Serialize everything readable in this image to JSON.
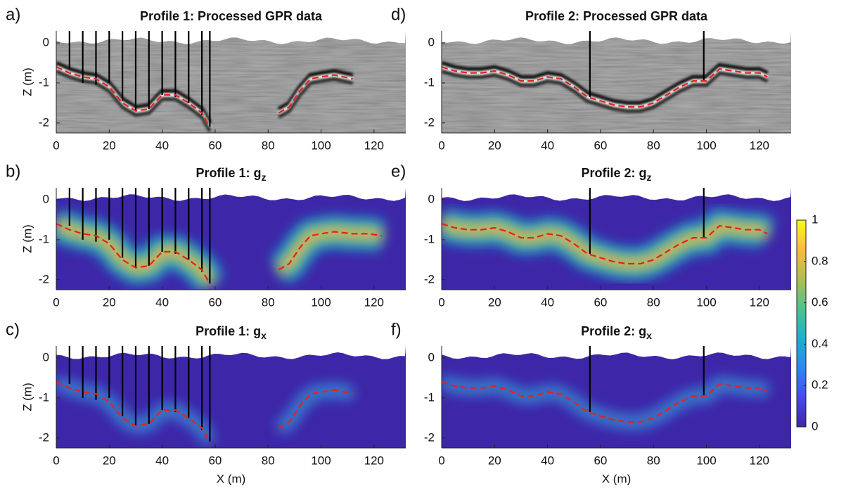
{
  "chart_data": [
    {
      "type": "gpr",
      "label": "a)",
      "title": "Profile 1: Processed GPR data",
      "ylabel": "Z (m)",
      "xlim": [
        0,
        132
      ],
      "ylim": [
        -2.25,
        0.3
      ],
      "xticks": [
        0,
        20,
        40,
        60,
        80,
        100,
        120
      ],
      "yticks": [
        0,
        -1,
        -2
      ],
      "interface_x": [
        0,
        5,
        10,
        15,
        20,
        25,
        30,
        35,
        40,
        45,
        50,
        55,
        58,
        null,
        84,
        88,
        92,
        96,
        100,
        105,
        112
      ],
      "interface_y": [
        -0.6,
        -0.75,
        -0.85,
        -0.9,
        -1.1,
        -1.5,
        -1.7,
        -1.65,
        -1.3,
        -1.3,
        -1.5,
        -1.75,
        -2.1,
        null,
        -1.75,
        -1.6,
        -1.2,
        -0.9,
        -0.85,
        -0.8,
        -0.9
      ],
      "interface_color": "#e8201c",
      "borehole_x": [
        5,
        10,
        15,
        20,
        25,
        30,
        35,
        40,
        45,
        50,
        55,
        58
      ],
      "borehole_bottom": [
        -0.65,
        -1.0,
        -1.05,
        -1.0,
        -1.45,
        -1.7,
        -1.65,
        -1.3,
        -1.35,
        -1.5,
        -1.8,
        -2.1
      ]
    },
    {
      "type": "gpr",
      "label": "d)",
      "title": "Profile 2: Processed GPR data",
      "xlim": [
        0,
        132
      ],
      "ylim": [
        -2.25,
        0.3
      ],
      "xticks": [
        0,
        20,
        40,
        60,
        80,
        100,
        120
      ],
      "yticks": [
        0,
        -1,
        -2
      ],
      "interface_x": [
        0,
        5,
        10,
        15,
        20,
        25,
        30,
        35,
        40,
        45,
        50,
        55,
        60,
        65,
        70,
        75,
        80,
        85,
        90,
        95,
        100,
        105,
        110,
        115,
        120,
        123
      ],
      "interface_y": [
        -0.6,
        -0.7,
        -0.75,
        -0.75,
        -0.7,
        -0.8,
        -0.95,
        -0.95,
        -0.85,
        -0.9,
        -1.1,
        -1.35,
        -1.45,
        -1.55,
        -1.6,
        -1.6,
        -1.5,
        -1.3,
        -1.1,
        -0.95,
        -0.95,
        -0.65,
        -0.7,
        -0.75,
        -0.75,
        -0.85
      ],
      "interface_color": "#e8201c",
      "borehole_x": [
        56,
        99
      ],
      "borehole_bottom": [
        -1.35,
        -0.95
      ]
    },
    {
      "type": "gz",
      "label": "b)",
      "title": "Profile 1: g",
      "title_sub": "z",
      "ylabel": "Z (m)",
      "xlim": [
        0,
        132
      ],
      "ylim": [
        -2.25,
        0.3
      ],
      "xticks": [
        0,
        20,
        40,
        60,
        80,
        100,
        120
      ],
      "yticks": [
        0,
        -1,
        -2
      ],
      "interface_x": [
        0,
        5,
        10,
        15,
        20,
        25,
        30,
        35,
        40,
        45,
        50,
        55,
        58,
        null,
        84,
        88,
        92,
        96,
        100,
        105,
        112,
        118,
        123
      ],
      "interface_y": [
        -0.6,
        -0.75,
        -0.85,
        -0.9,
        -1.1,
        -1.5,
        -1.7,
        -1.65,
        -1.3,
        -1.3,
        -1.5,
        -1.75,
        -2.1,
        null,
        -1.75,
        -1.6,
        -1.2,
        -0.9,
        -0.85,
        -0.8,
        -0.85,
        -0.85,
        -0.9
      ],
      "interface_color": "#e8201c",
      "borehole_x": [
        5,
        10,
        15,
        20,
        25,
        30,
        35,
        40,
        45,
        50,
        55,
        58
      ],
      "borehole_bottom": [
        -0.65,
        -1.0,
        -1.05,
        -1.0,
        -1.45,
        -1.7,
        -1.65,
        -1.3,
        -1.35,
        -1.5,
        -1.8,
        -2.1
      ]
    },
    {
      "type": "gz",
      "label": "e)",
      "title": "Profile 2: g",
      "title_sub": "z",
      "xlim": [
        0,
        132
      ],
      "ylim": [
        -2.25,
        0.3
      ],
      "xticks": [
        0,
        20,
        40,
        60,
        80,
        100,
        120
      ],
      "yticks": [
        0,
        -1,
        -2
      ],
      "interface_x": [
        0,
        5,
        10,
        15,
        20,
        25,
        30,
        35,
        40,
        45,
        50,
        55,
        60,
        65,
        70,
        75,
        80,
        85,
        90,
        95,
        100,
        105,
        110,
        115,
        120,
        123
      ],
      "interface_y": [
        -0.6,
        -0.7,
        -0.75,
        -0.75,
        -0.7,
        -0.8,
        -0.95,
        -0.95,
        -0.85,
        -0.9,
        -1.1,
        -1.35,
        -1.45,
        -1.55,
        -1.6,
        -1.6,
        -1.5,
        -1.3,
        -1.1,
        -0.95,
        -0.95,
        -0.65,
        -0.7,
        -0.75,
        -0.75,
        -0.85
      ],
      "interface_color": "#e8201c",
      "borehole_x": [
        56,
        99
      ],
      "borehole_bottom": [
        -1.35,
        -0.95
      ]
    },
    {
      "type": "gx",
      "label": "c)",
      "title": "Profile 1: g",
      "title_sub": "x",
      "ylabel": "Z (m)",
      "xlabel": "X (m)",
      "xlim": [
        0,
        132
      ],
      "ylim": [
        -2.25,
        0.3
      ],
      "xticks": [
        0,
        20,
        40,
        60,
        80,
        100,
        120
      ],
      "yticks": [
        0,
        -1,
        -2
      ],
      "interface_x": [
        0,
        5,
        10,
        15,
        20,
        25,
        30,
        35,
        40,
        45,
        50,
        55,
        58,
        null,
        84,
        88,
        92,
        96,
        100,
        105,
        112
      ],
      "interface_y": [
        -0.6,
        -0.75,
        -0.85,
        -0.9,
        -1.1,
        -1.5,
        -1.7,
        -1.65,
        -1.3,
        -1.3,
        -1.5,
        -1.75,
        -2.1,
        null,
        -1.75,
        -1.6,
        -1.2,
        -0.9,
        -0.85,
        -0.8,
        -0.9
      ],
      "interface_color": "#e8201c",
      "borehole_x": [
        5,
        10,
        15,
        20,
        25,
        30,
        35,
        40,
        45,
        50,
        55,
        58
      ],
      "borehole_bottom": [
        -0.65,
        -1.0,
        -1.05,
        -1.0,
        -1.45,
        -1.7,
        -1.65,
        -1.3,
        -1.35,
        -1.5,
        -1.8,
        -2.1
      ]
    },
    {
      "type": "gx",
      "label": "f)",
      "title": "Profile 2: g",
      "title_sub": "x",
      "xlabel": "X (m)",
      "xlim": [
        0,
        132
      ],
      "ylim": [
        -2.25,
        0.3
      ],
      "xticks": [
        0,
        20,
        40,
        60,
        80,
        100,
        120
      ],
      "yticks": [
        0,
        -1,
        -2
      ],
      "interface_x": [
        0,
        5,
        10,
        15,
        20,
        25,
        30,
        35,
        40,
        45,
        50,
        55,
        60,
        65,
        70,
        75,
        80,
        85,
        90,
        95,
        100,
        105,
        110,
        115,
        120,
        123
      ],
      "interface_y": [
        -0.6,
        -0.7,
        -0.75,
        -0.75,
        -0.7,
        -0.8,
        -0.95,
        -0.95,
        -0.85,
        -0.9,
        -1.1,
        -1.35,
        -1.45,
        -1.55,
        -1.6,
        -1.6,
        -1.5,
        -1.3,
        -1.1,
        -0.95,
        -0.95,
        -0.65,
        -0.7,
        -0.75,
        -0.75,
        -0.85
      ],
      "interface_color": "#e8201c",
      "borehole_x": [
        56,
        99
      ],
      "borehole_bottom": [
        -1.35,
        -0.95
      ]
    },
    {
      "type": "colorbar",
      "ylim": [
        0,
        1
      ],
      "yticks": [
        0,
        0.2,
        0.4,
        0.6,
        0.8,
        1
      ],
      "colormap": [
        "#3e26a8",
        "#4748f4",
        "#2e87f7",
        "#17b2cc",
        "#4bc48f",
        "#b0bd4f",
        "#fbbb3c",
        "#f9fb15"
      ]
    }
  ]
}
